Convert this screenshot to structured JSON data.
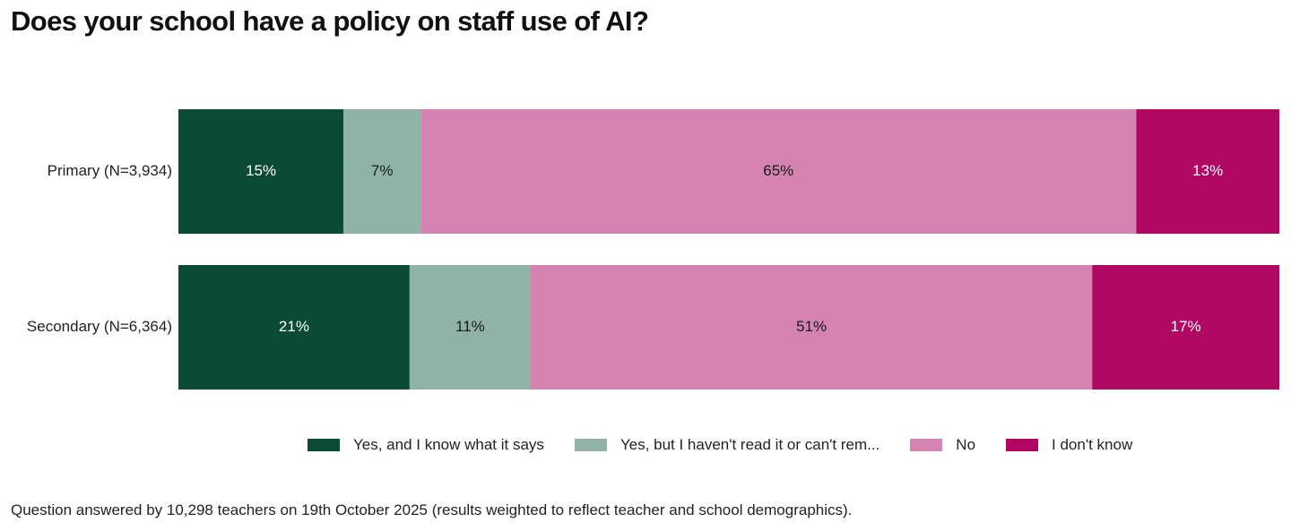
{
  "chart_data": {
    "type": "bar",
    "orientation": "horizontal",
    "stacked": true,
    "title": "Does your school have a policy on staff use of AI?",
    "categories": [
      "Primary (N=3,934)",
      "Secondary (N=6,364)"
    ],
    "series": [
      {
        "name": "Yes, and I know what it says",
        "legend_label": "Yes, and I know what it says",
        "color": "#0b4a35",
        "label_color": "#ffffff",
        "values": [
          15,
          21
        ],
        "labels": [
          "15%",
          "21%"
        ]
      },
      {
        "name": "Yes, but I haven't read it or can't remember",
        "legend_label": "Yes, but I haven't read it or can't rem...",
        "color": "#91b2a7",
        "label_color": "#1a1a1a",
        "values": [
          7,
          11
        ],
        "labels": [
          "7%",
          "11%"
        ]
      },
      {
        "name": "No",
        "legend_label": "No",
        "color": "#d583b0",
        "label_color": "#1a1a1a",
        "values": [
          65,
          51
        ],
        "labels": [
          "65%",
          "51%"
        ]
      },
      {
        "name": "I don't know",
        "legend_label": "I don't know",
        "color": "#b00762",
        "label_color": "#ffffff",
        "values": [
          13,
          17
        ],
        "labels": [
          "13%",
          "17%"
        ]
      }
    ],
    "xlim": [
      0,
      100
    ],
    "grid": false,
    "legend_position": "bottom",
    "footnote": "Question answered by 10,298 teachers on 19th October 2025 (results weighted to reflect teacher and school demographics)."
  }
}
